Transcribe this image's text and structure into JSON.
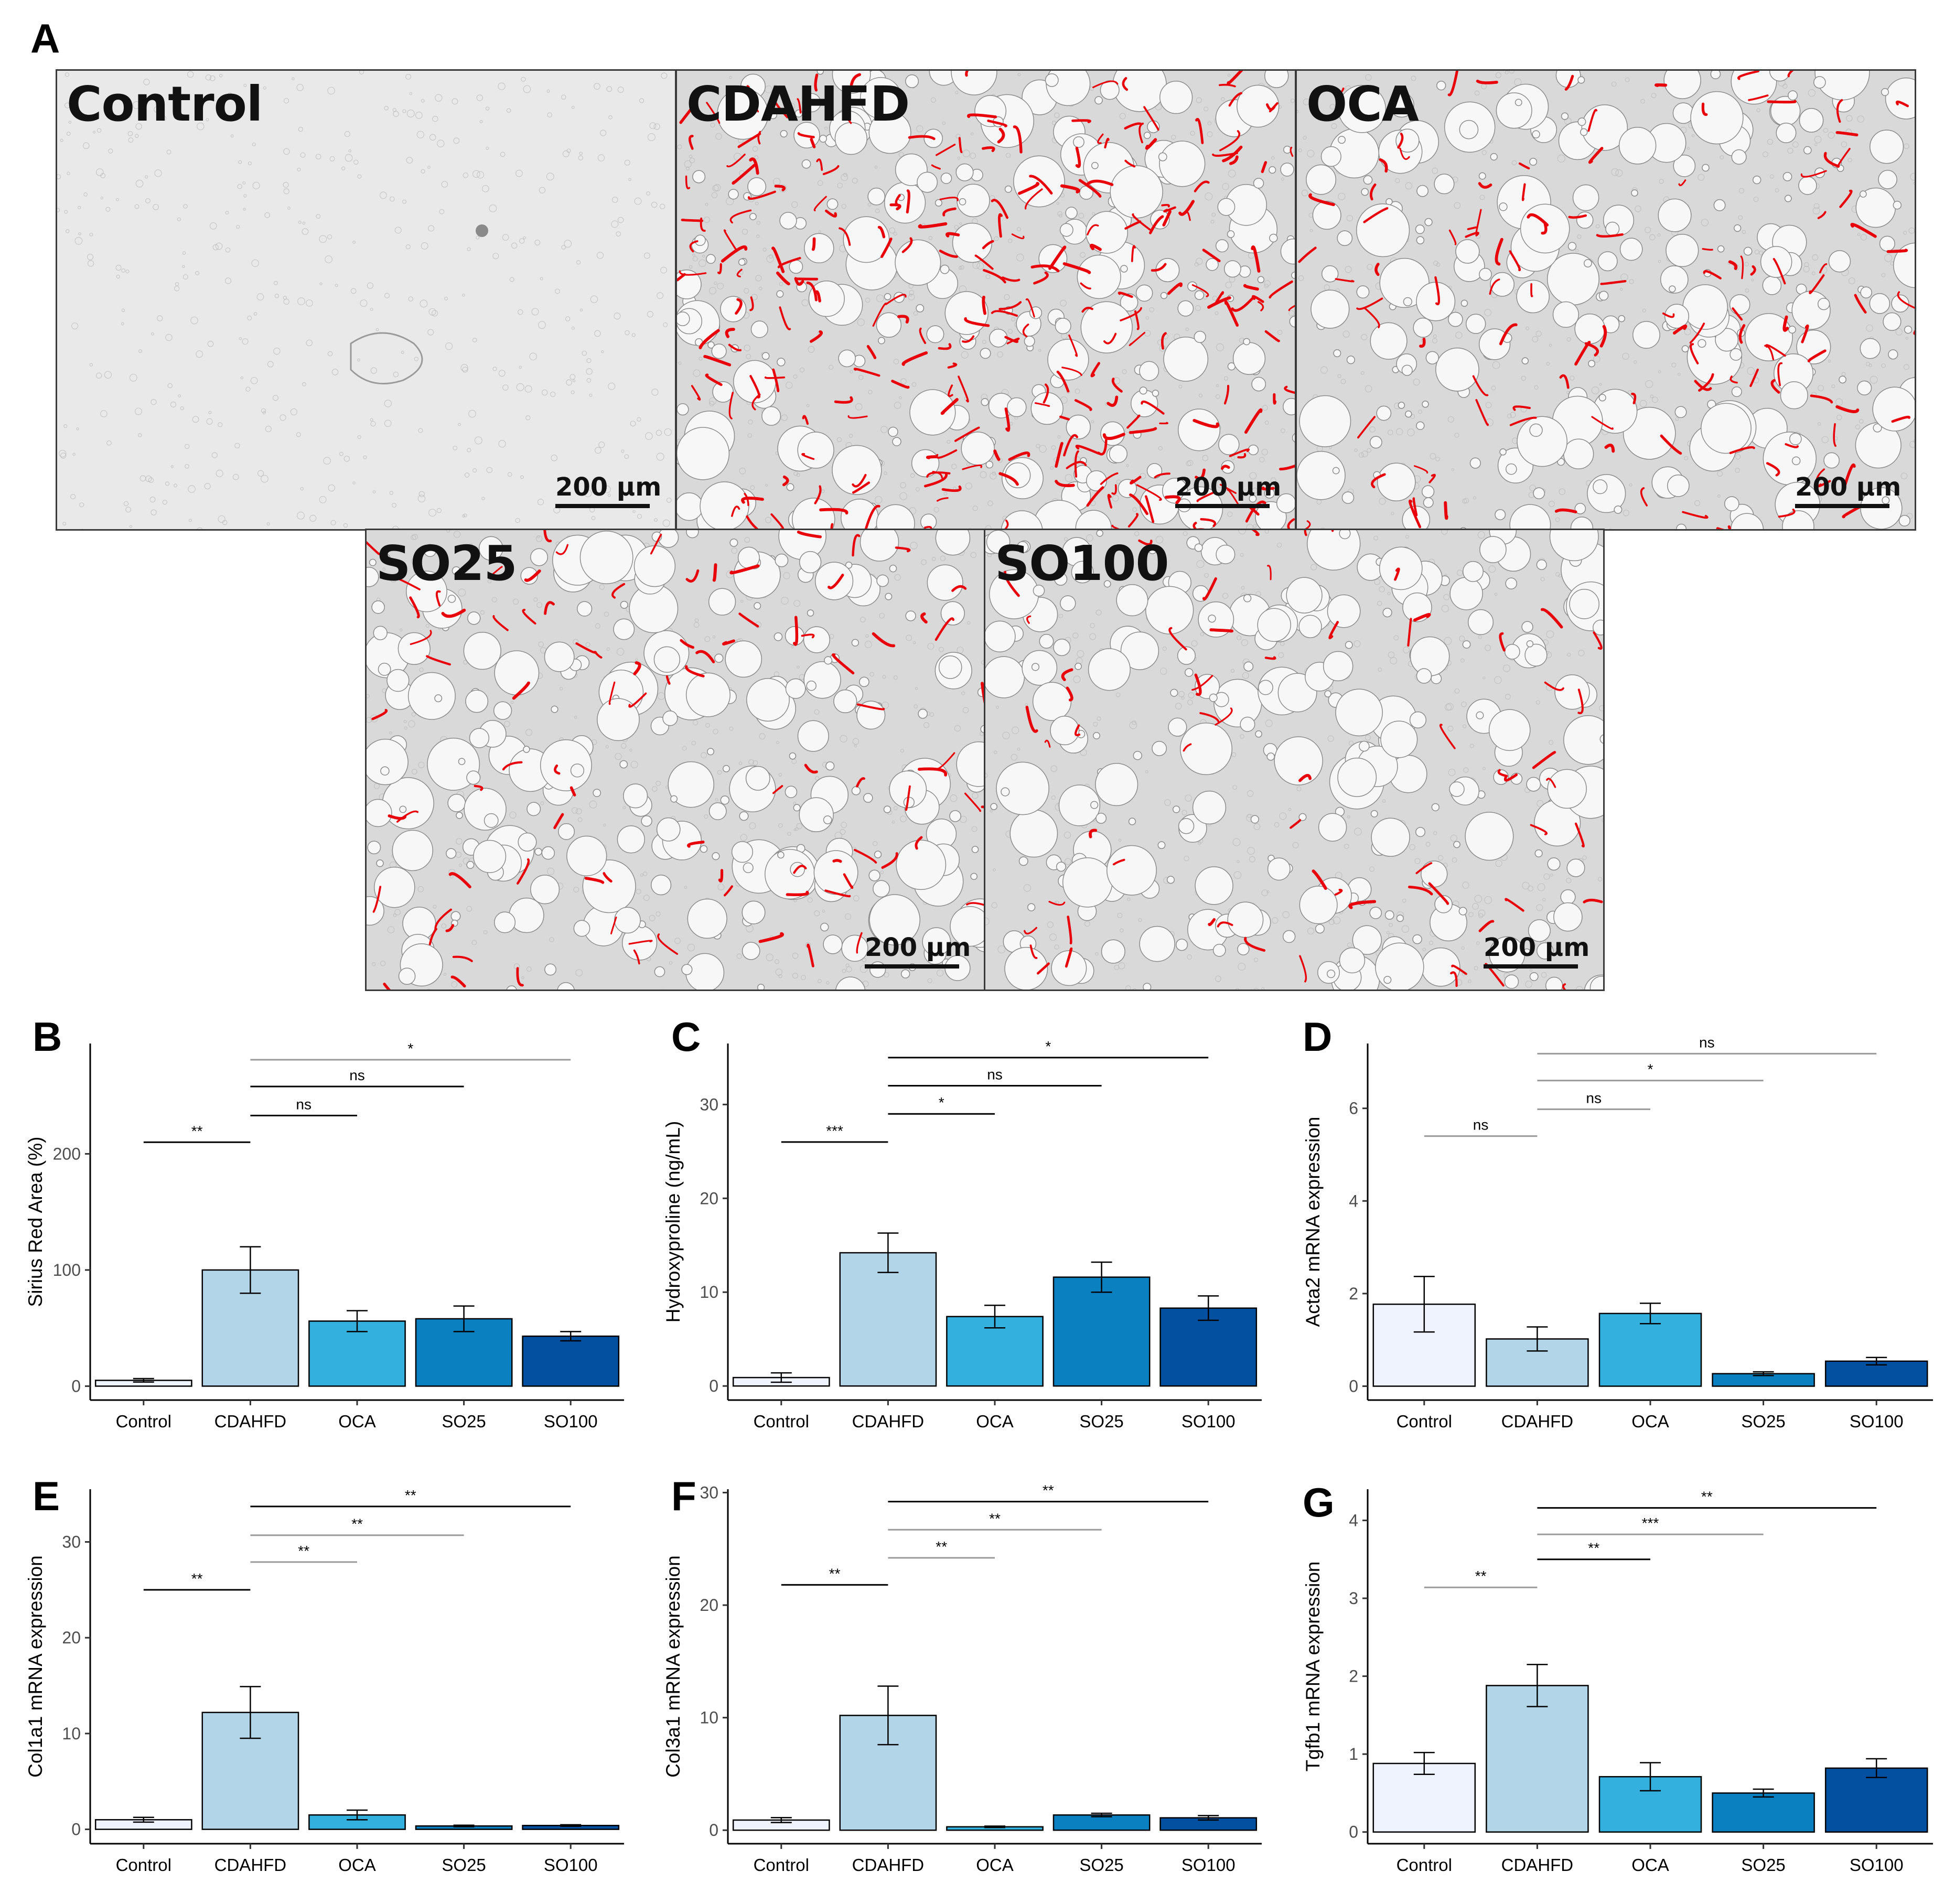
{
  "panel_letters": [
    "A",
    "B",
    "C",
    "D",
    "E",
    "F",
    "G"
  ],
  "micrographs": [
    {
      "label": "Control",
      "scale_bar": "200 µm",
      "red_density": 0
    },
    {
      "label": "CDAHFD",
      "scale_bar": "200 µm",
      "red_density": 1.0
    },
    {
      "label": "OCA",
      "scale_bar": "200 µm",
      "red_density": 0.45
    },
    {
      "label": "SO25",
      "scale_bar": "200 µm",
      "red_density": 0.35
    },
    {
      "label": "SO100",
      "scale_bar": "200 µm",
      "red_density": 0.25
    }
  ],
  "colors": {
    "Control": "#eef3fd",
    "CDAHFD": "#b3d5e8",
    "OCA": "#33b0de",
    "SO25": "#0a80c0",
    "SO100": "#0350a0",
    "fibrosis_red": "#e8000a",
    "bracket_dark": "#000000",
    "bracket_light": "#9a9a9a"
  },
  "chart_data": [
    {
      "panel": "B",
      "type": "bar",
      "categories": [
        "Control",
        "CDAHFD",
        "OCA",
        "SO25",
        "SO100"
      ],
      "values": [
        5,
        100,
        56,
        58,
        43
      ],
      "errors": [
        1.5,
        20,
        9,
        11,
        4
      ],
      "ylabel": "Sirius Red Area (%)",
      "yticks": [
        0,
        100,
        200
      ],
      "ylim": [
        -12,
        295
      ],
      "comparisons": [
        {
          "from": 0,
          "to": 1,
          "label": "**",
          "y": 210,
          "shade": "dark"
        },
        {
          "from": 1,
          "to": 2,
          "label": "ns",
          "y": 233,
          "shade": "dark"
        },
        {
          "from": 1,
          "to": 3,
          "label": "ns",
          "y": 258,
          "shade": "dark"
        },
        {
          "from": 1,
          "to": 4,
          "label": "*",
          "y": 281,
          "shade": "light"
        }
      ]
    },
    {
      "panel": "C",
      "type": "bar",
      "categories": [
        "Control",
        "CDAHFD",
        "OCA",
        "SO25",
        "SO100"
      ],
      "values": [
        0.9,
        14.2,
        7.4,
        11.6,
        8.3
      ],
      "errors": [
        0.5,
        2.1,
        1.2,
        1.6,
        1.3
      ],
      "ylabel": "Hydroxyproline (ng/mL)",
      "yticks": [
        0,
        10,
        20,
        30
      ],
      "ylim": [
        -1.5,
        36.5
      ],
      "comparisons": [
        {
          "from": 0,
          "to": 1,
          "label": "***",
          "y": 26,
          "shade": "dark"
        },
        {
          "from": 1,
          "to": 2,
          "label": "*",
          "y": 29,
          "shade": "dark"
        },
        {
          "from": 1,
          "to": 3,
          "label": "ns",
          "y": 32,
          "shade": "dark"
        },
        {
          "from": 1,
          "to": 4,
          "label": "*",
          "y": 35,
          "shade": "dark"
        }
      ]
    },
    {
      "panel": "D",
      "type": "bar",
      "categories": [
        "Control",
        "CDAHFD",
        "OCA",
        "SO25",
        "SO100"
      ],
      "values": [
        1.77,
        1.02,
        1.57,
        0.27,
        0.54
      ],
      "errors": [
        0.6,
        0.26,
        0.22,
        0.04,
        0.08
      ],
      "ylabel": "Acta2 mRNA expression",
      "yticks": [
        0,
        2,
        4,
        6
      ],
      "ylim": [
        -0.3,
        7.4
      ],
      "comparisons": [
        {
          "from": 0,
          "to": 1,
          "label": "ns",
          "y": 5.4,
          "shade": "light"
        },
        {
          "from": 1,
          "to": 2,
          "label": "ns",
          "y": 5.98,
          "shade": "light"
        },
        {
          "from": 1,
          "to": 3,
          "label": "*",
          "y": 6.6,
          "shade": "light"
        },
        {
          "from": 1,
          "to": 4,
          "label": "ns",
          "y": 7.18,
          "shade": "light"
        }
      ]
    },
    {
      "panel": "E",
      "type": "bar",
      "categories": [
        "Control",
        "CDAHFD",
        "OCA",
        "SO25",
        "SO100"
      ],
      "values": [
        1.0,
        12.2,
        1.5,
        0.35,
        0.4
      ],
      "errors": [
        0.25,
        2.7,
        0.5,
        0.08,
        0.08
      ],
      "ylabel": "Col1a1 mRNA expression",
      "yticks": [
        0,
        10,
        20,
        30
      ],
      "ylim": [
        -1.5,
        35.5
      ],
      "comparisons": [
        {
          "from": 0,
          "to": 1,
          "label": "**",
          "y": 25,
          "shade": "dark"
        },
        {
          "from": 1,
          "to": 2,
          "label": "**",
          "y": 27.9,
          "shade": "light"
        },
        {
          "from": 1,
          "to": 3,
          "label": "**",
          "y": 30.7,
          "shade": "light"
        },
        {
          "from": 1,
          "to": 4,
          "label": "**",
          "y": 33.7,
          "shade": "dark"
        }
      ]
    },
    {
      "panel": "F",
      "type": "bar",
      "categories": [
        "Control",
        "CDAHFD",
        "OCA",
        "SO25",
        "SO100"
      ],
      "values": [
        0.9,
        10.2,
        0.3,
        1.35,
        1.1
      ],
      "errors": [
        0.22,
        2.6,
        0.06,
        0.15,
        0.2
      ],
      "ylabel": "Col3a1 mRNA expression",
      "yticks": [
        0,
        10,
        20,
        30
      ],
      "ylim": [
        -1.2,
        30.3
      ],
      "comparisons": [
        {
          "from": 0,
          "to": 1,
          "label": "**",
          "y": 21.8,
          "shade": "dark"
        },
        {
          "from": 1,
          "to": 2,
          "label": "**",
          "y": 24.2,
          "shade": "light"
        },
        {
          "from": 1,
          "to": 3,
          "label": "**",
          "y": 26.7,
          "shade": "light"
        },
        {
          "from": 1,
          "to": 4,
          "label": "**",
          "y": 29.2,
          "shade": "dark"
        }
      ]
    },
    {
      "panel": "G",
      "type": "bar",
      "categories": [
        "Control",
        "CDAHFD",
        "OCA",
        "SO25",
        "SO100"
      ],
      "values": [
        0.88,
        1.88,
        0.71,
        0.5,
        0.82
      ],
      "errors": [
        0.14,
        0.27,
        0.18,
        0.05,
        0.12
      ],
      "ylabel": "Tgfb1 mRNA expression",
      "yticks": [
        0,
        1,
        2,
        3,
        4
      ],
      "ylim": [
        -0.15,
        4.4
      ],
      "comparisons": [
        {
          "from": 0,
          "to": 1,
          "label": "**",
          "y": 3.14,
          "shade": "light"
        },
        {
          "from": 1,
          "to": 2,
          "label": "**",
          "y": 3.5,
          "shade": "dark"
        },
        {
          "from": 1,
          "to": 3,
          "label": "***",
          "y": 3.82,
          "shade": "light"
        },
        {
          "from": 1,
          "to": 4,
          "label": "**",
          "y": 4.16,
          "shade": "dark"
        }
      ]
    }
  ]
}
